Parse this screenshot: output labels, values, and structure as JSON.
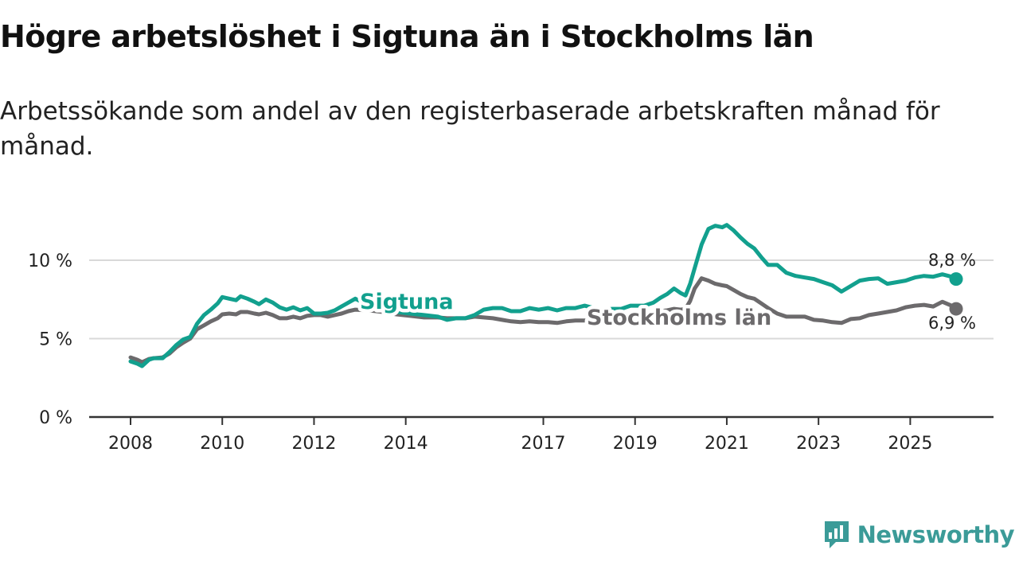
{
  "title": "Högre arbetslöshet i Sigtuna än i Stockholms län",
  "subtitle": "Arbetssökande som andel av den registerbaserade arbetskraften månad för månad.",
  "brand": {
    "name": "Newsworthy",
    "logo_icon": "newsworthy-chart-icon",
    "color": "#3b9b98"
  },
  "chart_data": {
    "type": "line",
    "title": "Högre arbetslöshet i Sigtuna än i Stockholms län",
    "subtitle": "Arbetssökande som andel av den registerbaserade arbetskraften månad för månad.",
    "xlabel": "",
    "ylabel": "",
    "unit": "%",
    "xlim": [
      2008,
      2026.5
    ],
    "ylim": [
      0,
      12.5
    ],
    "grid": true,
    "y_ticks": [
      {
        "value": 0,
        "label": "0 %"
      },
      {
        "value": 5,
        "label": "5 %"
      },
      {
        "value": 10,
        "label": "10 %"
      }
    ],
    "x_ticks": [
      {
        "value": 2008,
        "label": "2008"
      },
      {
        "value": 2010,
        "label": "2010"
      },
      {
        "value": 2012,
        "label": "2012"
      },
      {
        "value": 2014,
        "label": "2014"
      },
      {
        "value": 2017,
        "label": "2017"
      },
      {
        "value": 2019,
        "label": "2019"
      },
      {
        "value": 2021,
        "label": "2021"
      },
      {
        "value": 2023,
        "label": "2023"
      },
      {
        "value": 2025,
        "label": "2025"
      }
    ],
    "series": [
      {
        "name": "Sigtuna",
        "color": "#12a08e",
        "end_label": "8,8 %",
        "x": [
          2008.0,
          2008.15,
          2008.25,
          2008.4,
          2008.5,
          2008.7,
          2008.85,
          2009.0,
          2009.15,
          2009.3,
          2009.45,
          2009.6,
          2009.75,
          2009.9,
          2010.0,
          2010.15,
          2010.3,
          2010.4,
          2010.55,
          2010.7,
          2010.8,
          2010.95,
          2011.1,
          2011.25,
          2011.4,
          2011.55,
          2011.7,
          2011.85,
          2012.0,
          2012.15,
          2012.3,
          2012.45,
          2012.6,
          2012.75,
          2012.9,
          2013.2,
          2013.5,
          2013.8,
          2014.1,
          2014.4,
          2014.7,
          2014.9,
          2015.1,
          2015.3,
          2015.5,
          2015.7,
          2015.9,
          2016.1,
          2016.3,
          2016.5,
          2016.7,
          2016.9,
          2017.1,
          2017.3,
          2017.5,
          2017.7,
          2017.9,
          2018.1,
          2018.3,
          2018.5,
          2018.7,
          2018.9,
          2019.0,
          2019.2,
          2019.4,
          2019.55,
          2019.7,
          2019.85,
          2020.0,
          2020.1,
          2020.2,
          2020.3,
          2020.45,
          2020.6,
          2020.75,
          2020.9,
          2021.0,
          2021.15,
          2021.3,
          2021.45,
          2021.6,
          2021.75,
          2021.9,
          2022.1,
          2022.3,
          2022.5,
          2022.7,
          2022.9,
          2023.1,
          2023.3,
          2023.5,
          2023.7,
          2023.9,
          2024.1,
          2024.3,
          2024.5,
          2024.7,
          2024.9,
          2025.1,
          2025.3,
          2025.5,
          2025.7,
          2025.9,
          2026.0
        ],
        "y": [
          3.55,
          3.4,
          3.25,
          3.65,
          3.75,
          3.75,
          4.15,
          4.6,
          4.95,
          5.1,
          5.95,
          6.5,
          6.85,
          7.25,
          7.65,
          7.55,
          7.45,
          7.7,
          7.55,
          7.35,
          7.2,
          7.5,
          7.3,
          7.0,
          6.85,
          7.0,
          6.8,
          6.95,
          6.6,
          6.6,
          6.65,
          6.8,
          7.05,
          7.3,
          7.55,
          7.1,
          6.9,
          6.7,
          6.6,
          6.5,
          6.4,
          6.2,
          6.3,
          6.3,
          6.5,
          6.85,
          6.95,
          6.95,
          6.75,
          6.75,
          6.95,
          6.85,
          6.95,
          6.8,
          6.95,
          6.95,
          7.1,
          6.95,
          6.85,
          6.9,
          6.9,
          7.1,
          7.1,
          7.1,
          7.3,
          7.6,
          7.85,
          8.2,
          7.9,
          7.75,
          8.5,
          9.5,
          11.0,
          12.0,
          12.2,
          12.1,
          12.25,
          11.9,
          11.45,
          11.05,
          10.75,
          10.2,
          9.7,
          9.7,
          9.2,
          9.0,
          8.9,
          8.8,
          8.6,
          8.4,
          8.0,
          8.35,
          8.7,
          8.8,
          8.85,
          8.5,
          8.6,
          8.7,
          8.9,
          9.0,
          8.95,
          9.1,
          8.95,
          8.8
        ]
      },
      {
        "name": "Stockholms län",
        "color": "#6c6a6c",
        "end_label": "6,9 %",
        "x": [
          2008.0,
          2008.15,
          2008.25,
          2008.4,
          2008.5,
          2008.7,
          2008.85,
          2009.0,
          2009.15,
          2009.3,
          2009.45,
          2009.6,
          2009.75,
          2009.9,
          2010.0,
          2010.15,
          2010.3,
          2010.4,
          2010.55,
          2010.7,
          2010.8,
          2010.95,
          2011.1,
          2011.25,
          2011.4,
          2011.55,
          2011.7,
          2011.85,
          2012.0,
          2012.15,
          2012.3,
          2012.45,
          2012.6,
          2012.75,
          2012.9,
          2013.2,
          2013.5,
          2013.8,
          2014.1,
          2014.4,
          2014.7,
          2014.9,
          2015.1,
          2015.3,
          2015.5,
          2015.7,
          2015.9,
          2016.1,
          2016.3,
          2016.5,
          2016.7,
          2016.9,
          2017.1,
          2017.3,
          2017.5,
          2017.7,
          2017.9,
          2018.1,
          2018.3,
          2018.5,
          2018.7,
          2018.9,
          2019.0,
          2019.2,
          2019.4,
          2019.55,
          2019.7,
          2019.85,
          2020.0,
          2020.1,
          2020.2,
          2020.3,
          2020.45,
          2020.6,
          2020.75,
          2020.9,
          2021.0,
          2021.15,
          2021.3,
          2021.45,
          2021.6,
          2021.75,
          2021.9,
          2022.1,
          2022.3,
          2022.5,
          2022.7,
          2022.9,
          2023.1,
          2023.3,
          2023.5,
          2023.7,
          2023.9,
          2024.1,
          2024.3,
          2024.5,
          2024.7,
          2024.9,
          2025.1,
          2025.3,
          2025.5,
          2025.7,
          2025.9,
          2026.0
        ],
        "y": [
          3.8,
          3.65,
          3.5,
          3.7,
          3.75,
          3.8,
          4.05,
          4.45,
          4.75,
          5.0,
          5.6,
          5.85,
          6.1,
          6.3,
          6.55,
          6.6,
          6.55,
          6.7,
          6.7,
          6.6,
          6.55,
          6.65,
          6.5,
          6.3,
          6.3,
          6.4,
          6.3,
          6.45,
          6.5,
          6.5,
          6.4,
          6.5,
          6.6,
          6.75,
          6.85,
          6.8,
          6.7,
          6.55,
          6.45,
          6.35,
          6.35,
          6.3,
          6.3,
          6.3,
          6.4,
          6.35,
          6.3,
          6.2,
          6.1,
          6.05,
          6.1,
          6.05,
          6.05,
          6.0,
          6.1,
          6.15,
          6.15,
          6.2,
          6.25,
          6.2,
          6.3,
          6.4,
          6.45,
          6.5,
          6.6,
          6.75,
          6.8,
          6.9,
          6.85,
          6.9,
          7.4,
          8.2,
          8.85,
          8.7,
          8.5,
          8.4,
          8.35,
          8.1,
          7.85,
          7.65,
          7.55,
          7.25,
          6.95,
          6.6,
          6.4,
          6.4,
          6.4,
          6.2,
          6.15,
          6.05,
          6.0,
          6.25,
          6.3,
          6.5,
          6.6,
          6.7,
          6.8,
          7.0,
          7.1,
          7.15,
          7.05,
          7.35,
          7.1,
          6.9
        ]
      }
    ],
    "annotations": [
      {
        "text": "Sigtuna",
        "series": "Sigtuna"
      },
      {
        "text": "Stockholms län",
        "series": "Stockholms län"
      }
    ]
  }
}
